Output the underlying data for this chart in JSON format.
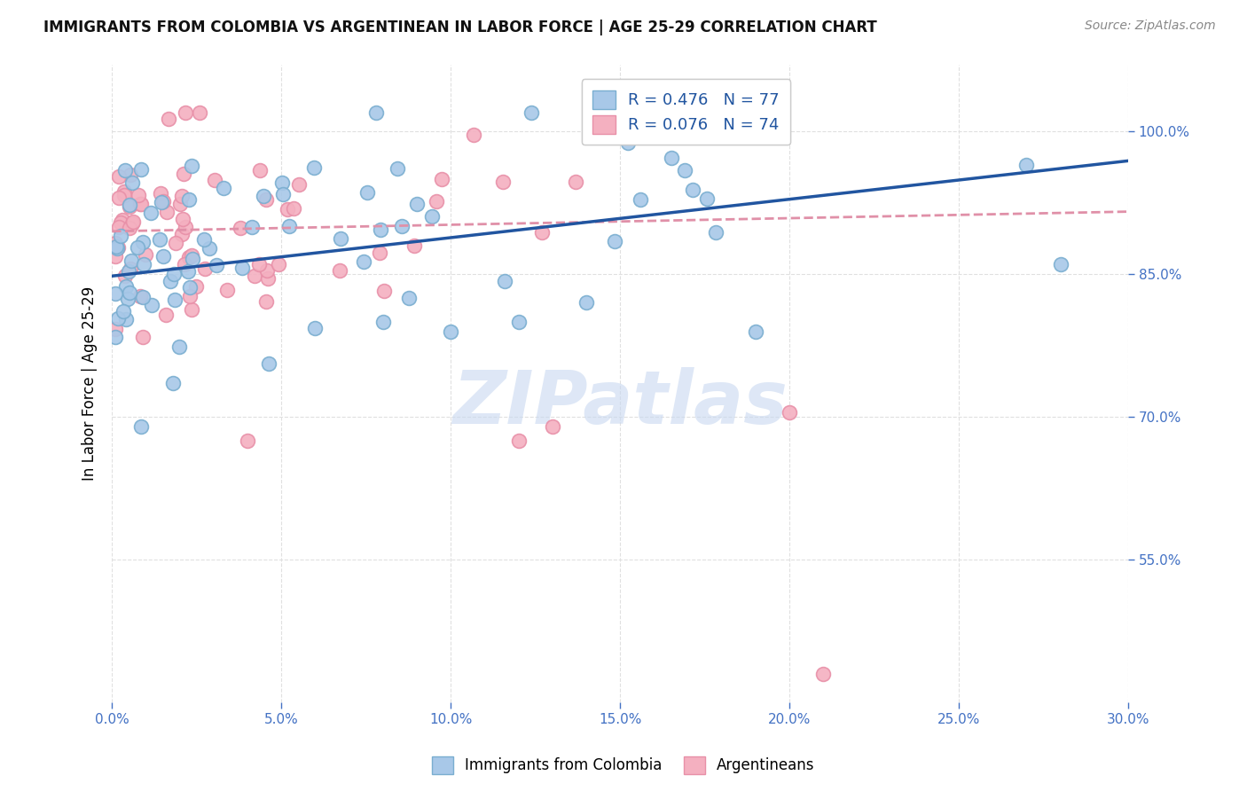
{
  "title": "IMMIGRANTS FROM COLOMBIA VS ARGENTINEAN IN LABOR FORCE | AGE 25-29 CORRELATION CHART",
  "source": "Source: ZipAtlas.com",
  "ylabel": "In Labor Force | Age 25-29",
  "legend_blue_r": "R = 0.476",
  "legend_blue_n": "N = 77",
  "legend_pink_r": "R = 0.076",
  "legend_pink_n": "N = 74",
  "legend_bottom_blue": "Immigrants from Colombia",
  "legend_bottom_pink": "Argentineans",
  "blue_scatter_color": "#a8c8e8",
  "blue_edge_color": "#7aaed0",
  "pink_scatter_color": "#f4b0c0",
  "pink_edge_color": "#e890a8",
  "blue_line_color": "#2155a0",
  "pink_line_color": "#e090a8",
  "xlim": [
    0.0,
    0.3
  ],
  "ylim": [
    0.4,
    1.07
  ],
  "x_tick_vals": [
    0.0,
    0.05,
    0.1,
    0.15,
    0.2,
    0.25,
    0.3
  ],
  "x_tick_labels": [
    "0.0%",
    "5.0%",
    "10.0%",
    "15.0%",
    "20.0%",
    "25.0%",
    "30.0%"
  ],
  "y_tick_vals": [
    0.55,
    0.7,
    0.85,
    1.0
  ],
  "y_tick_labels": [
    "55.0%",
    "70.0%",
    "85.0%",
    "100.0%"
  ],
  "tick_color": "#4472c4",
  "grid_color": "#e0e0e0",
  "bg_color": "#ffffff",
  "watermark": "ZIPatlas",
  "watermark_color": "#c8d8f0",
  "title_color": "#111111",
  "source_color": "#888888"
}
